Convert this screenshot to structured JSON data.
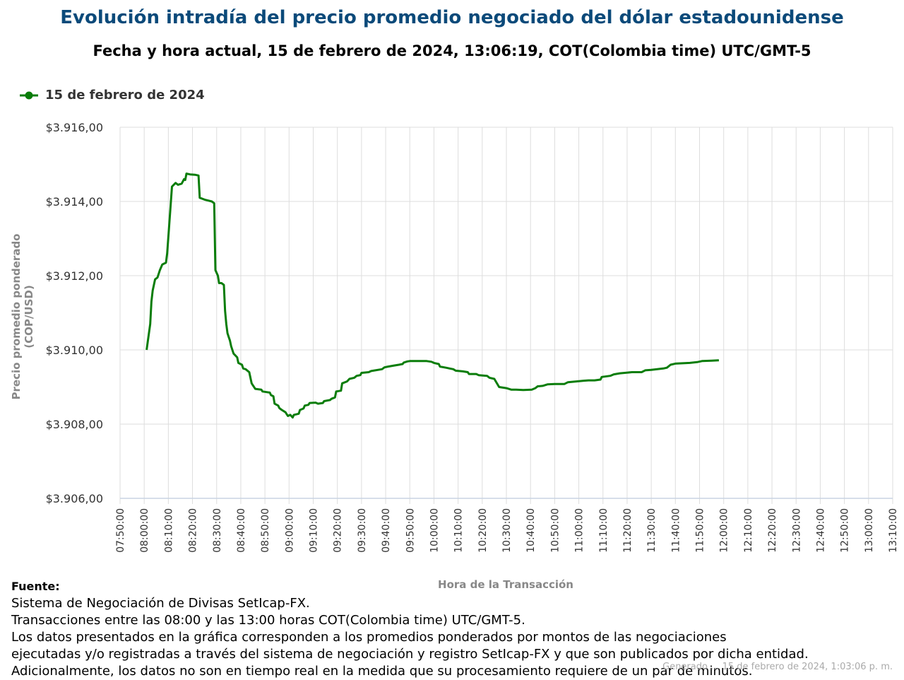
{
  "title": "Evolución intradía del precio promedio negociado del dólar estadounidense",
  "subtitle": "Fecha y hora actual, 15 de febrero de 2024, 13:06:19, COT(Colombia time) UTC/GMT-5",
  "legend": {
    "label": "15 de febrero de 2024"
  },
  "source": {
    "heading": "Fuente:",
    "lines": [
      "Sistema de Negociación de Divisas SetIcap-FX.",
      "Transacciones entre las 08:00 y las 13:00 horas COT(Colombia time) UTC/GMT-5.",
      "Los datos presentados en la gráfica corresponden a los promedios ponderados por montos de las negociaciones",
      "ejecutadas y/o registradas a través del sistema de negociación y registro SetIcap-FX y que son publicados por dicha entidad.",
      "Adicionalmente, los datos no son en tiempo real en la medida que su procesamiento requiere de un par de minutos."
    ]
  },
  "credit": "Generado ... 15 de febrero de 2024, 1:03:06 p. m.",
  "colors": {
    "line": "#0a7d0a",
    "title": "#0b4a7a",
    "grid": "#dddddd"
  },
  "chart_data": {
    "type": "line",
    "xlabel": "Hora de la Transacción",
    "ylabel": "Precio promedio ponderado (COP/USD)",
    "xlim": [
      "07:50:00",
      "13:10:00"
    ],
    "ylim": [
      3906,
      3916
    ],
    "grid": true,
    "legend_position": "top-left",
    "xticks": [
      "07:50:00",
      "08:00:00",
      "08:10:00",
      "08:20:00",
      "08:30:00",
      "08:40:00",
      "08:50:00",
      "09:00:00",
      "09:10:00",
      "09:20:00",
      "09:30:00",
      "09:40:00",
      "09:50:00",
      "10:00:00",
      "10:10:00",
      "10:20:00",
      "10:30:00",
      "10:40:00",
      "10:50:00",
      "11:00:00",
      "11:10:00",
      "11:20:00",
      "11:30:00",
      "11:40:00",
      "11:50:00",
      "12:00:00",
      "12:10:00",
      "12:20:00",
      "12:30:00",
      "12:40:00",
      "12:50:00",
      "13:00:00",
      "13:10:00"
    ],
    "yticks": [
      "$3.906,00",
      "$3.908,00",
      "$3.910,00",
      "$3.912,00",
      "$3.914,00",
      "$3.916,00"
    ],
    "series": [
      {
        "name": "15 de febrero de 2024",
        "points": [
          [
            "08:01:00",
            3910.0
          ],
          [
            "08:02:30",
            3910.7
          ],
          [
            "08:03:00",
            3911.3
          ],
          [
            "08:03:30",
            3911.6
          ],
          [
            "08:04:30",
            3911.9
          ],
          [
            "08:05:30",
            3911.95
          ],
          [
            "08:06:30",
            3912.15
          ],
          [
            "08:07:30",
            3912.3
          ],
          [
            "08:09:00",
            3912.35
          ],
          [
            "08:09:30",
            3912.6
          ],
          [
            "08:10:30",
            3913.5
          ],
          [
            "08:11:30",
            3914.4
          ],
          [
            "08:13:00",
            3914.5
          ],
          [
            "08:14:00",
            3914.45
          ],
          [
            "08:15:30",
            3914.48
          ],
          [
            "08:16:30",
            3914.6
          ],
          [
            "08:17:00",
            3914.58
          ],
          [
            "08:17:30",
            3914.75
          ],
          [
            "08:19:00",
            3914.73
          ],
          [
            "08:21:00",
            3914.72
          ],
          [
            "08:22:30",
            3914.7
          ],
          [
            "08:23:00",
            3914.1
          ],
          [
            "08:25:00",
            3914.05
          ],
          [
            "08:28:00",
            3914.0
          ],
          [
            "08:29:00",
            3913.95
          ],
          [
            "08:29:30",
            3912.15
          ],
          [
            "08:30:30",
            3912.0
          ],
          [
            "08:31:00",
            3911.8
          ],
          [
            "08:32:00",
            3911.8
          ],
          [
            "08:33:00",
            3911.75
          ],
          [
            "08:33:30",
            3911.05
          ],
          [
            "08:34:00",
            3910.7
          ],
          [
            "08:34:30",
            3910.45
          ],
          [
            "08:35:00",
            3910.35
          ],
          [
            "08:35:30",
            3910.25
          ],
          [
            "08:36:00",
            3910.1
          ],
          [
            "08:37:00",
            3909.9
          ],
          [
            "08:38:30",
            3909.8
          ],
          [
            "08:39:00",
            3909.65
          ],
          [
            "08:40:30",
            3909.6
          ],
          [
            "08:41:00",
            3909.5
          ],
          [
            "08:42:00",
            3909.48
          ],
          [
            "08:43:30",
            3909.4
          ],
          [
            "08:44:30",
            3909.1
          ],
          [
            "08:45:00",
            3909.05
          ],
          [
            "08:46:00",
            3908.95
          ],
          [
            "08:48:30",
            3908.93
          ],
          [
            "08:49:00",
            3908.88
          ],
          [
            "08:52:00",
            3908.85
          ],
          [
            "08:52:30",
            3908.78
          ],
          [
            "08:53:30",
            3908.75
          ],
          [
            "08:54:00",
            3908.55
          ],
          [
            "08:55:30",
            3908.5
          ],
          [
            "08:56:00",
            3908.43
          ],
          [
            "08:57:00",
            3908.38
          ],
          [
            "08:58:30",
            3908.32
          ],
          [
            "08:59:30",
            3908.22
          ],
          [
            "09:00:30",
            3908.25
          ],
          [
            "09:01:30",
            3908.18
          ],
          [
            "09:02:00",
            3908.25
          ],
          [
            "09:04:00",
            3908.28
          ],
          [
            "09:04:30",
            3908.38
          ],
          [
            "09:06:00",
            3908.42
          ],
          [
            "09:06:30",
            3908.5
          ],
          [
            "09:08:00",
            3908.52
          ],
          [
            "09:08:30",
            3908.57
          ],
          [
            "09:11:00",
            3908.58
          ],
          [
            "09:12:00",
            3908.55
          ],
          [
            "09:14:00",
            3908.57
          ],
          [
            "09:14:30",
            3908.62
          ],
          [
            "09:17:00",
            3908.65
          ],
          [
            "09:17:30",
            3908.68
          ],
          [
            "09:19:00",
            3908.72
          ],
          [
            "09:19:30",
            3908.88
          ],
          [
            "09:21:30",
            3908.9
          ],
          [
            "09:22:00",
            3909.1
          ],
          [
            "09:24:00",
            3909.15
          ],
          [
            "09:25:00",
            3909.22
          ],
          [
            "09:27:00",
            3909.25
          ],
          [
            "09:28:00",
            3909.3
          ],
          [
            "09:29:30",
            3909.32
          ],
          [
            "09:30:00",
            3909.38
          ],
          [
            "09:33:00",
            3909.4
          ],
          [
            "09:34:00",
            3909.43
          ],
          [
            "09:38:30",
            3909.48
          ],
          [
            "09:39:30",
            3909.53
          ],
          [
            "09:41:00",
            3909.55
          ],
          [
            "09:43:30",
            3909.58
          ],
          [
            "09:45:30",
            3909.6
          ],
          [
            "09:47:00",
            3909.62
          ],
          [
            "09:47:30",
            3909.66
          ],
          [
            "09:49:00",
            3909.69
          ],
          [
            "09:50:00",
            3909.7
          ],
          [
            "09:52:00",
            3909.7
          ],
          [
            "09:57:00",
            3909.7
          ],
          [
            "09:59:00",
            3909.68
          ],
          [
            "10:00:00",
            3909.65
          ],
          [
            "10:02:00",
            3909.62
          ],
          [
            "10:02:30",
            3909.55
          ],
          [
            "10:05:00",
            3909.52
          ],
          [
            "10:06:30",
            3909.5
          ],
          [
            "10:08:00",
            3909.48
          ],
          [
            "10:09:00",
            3909.44
          ],
          [
            "10:12:00",
            3909.42
          ],
          [
            "10:14:00",
            3909.4
          ],
          [
            "10:14:30",
            3909.35
          ],
          [
            "10:17:30",
            3909.35
          ],
          [
            "10:18:30",
            3909.32
          ],
          [
            "10:22:00",
            3909.3
          ],
          [
            "10:23:00",
            3909.25
          ],
          [
            "10:25:00",
            3909.22
          ],
          [
            "10:27:00",
            3909.0
          ],
          [
            "10:30:00",
            3908.97
          ],
          [
            "10:32:00",
            3908.93
          ],
          [
            "10:34:00",
            3908.93
          ],
          [
            "10:37:00",
            3908.92
          ],
          [
            "10:40:30",
            3908.93
          ],
          [
            "10:42:00",
            3908.97
          ],
          [
            "10:43:00",
            3909.02
          ],
          [
            "10:45:00",
            3909.03
          ],
          [
            "10:47:00",
            3909.07
          ],
          [
            "10:50:00",
            3909.08
          ],
          [
            "10:54:00",
            3909.08
          ],
          [
            "10:55:30",
            3909.13
          ],
          [
            "10:59:00",
            3909.15
          ],
          [
            "11:02:00",
            3909.17
          ],
          [
            "11:04:00",
            3909.18
          ],
          [
            "11:06:30",
            3909.18
          ],
          [
            "11:09:00",
            3909.2
          ],
          [
            "11:09:30",
            3909.27
          ],
          [
            "11:13:00",
            3909.3
          ],
          [
            "11:14:30",
            3909.34
          ],
          [
            "11:17:00",
            3909.37
          ],
          [
            "11:19:00",
            3909.38
          ],
          [
            "11:22:00",
            3909.4
          ],
          [
            "11:26:00",
            3909.4
          ],
          [
            "11:27:30",
            3909.45
          ],
          [
            "11:30:00",
            3909.46
          ],
          [
            "11:32:30",
            3909.48
          ],
          [
            "11:35:00",
            3909.5
          ],
          [
            "11:36:30",
            3909.52
          ],
          [
            "11:38:00",
            3909.6
          ],
          [
            "11:40:00",
            3909.63
          ],
          [
            "11:43:00",
            3909.64
          ],
          [
            "11:46:00",
            3909.65
          ],
          [
            "11:49:00",
            3909.67
          ],
          [
            "11:51:00",
            3909.7
          ],
          [
            "11:55:00",
            3909.71
          ],
          [
            "11:58:00",
            3909.72
          ]
        ]
      }
    ]
  }
}
